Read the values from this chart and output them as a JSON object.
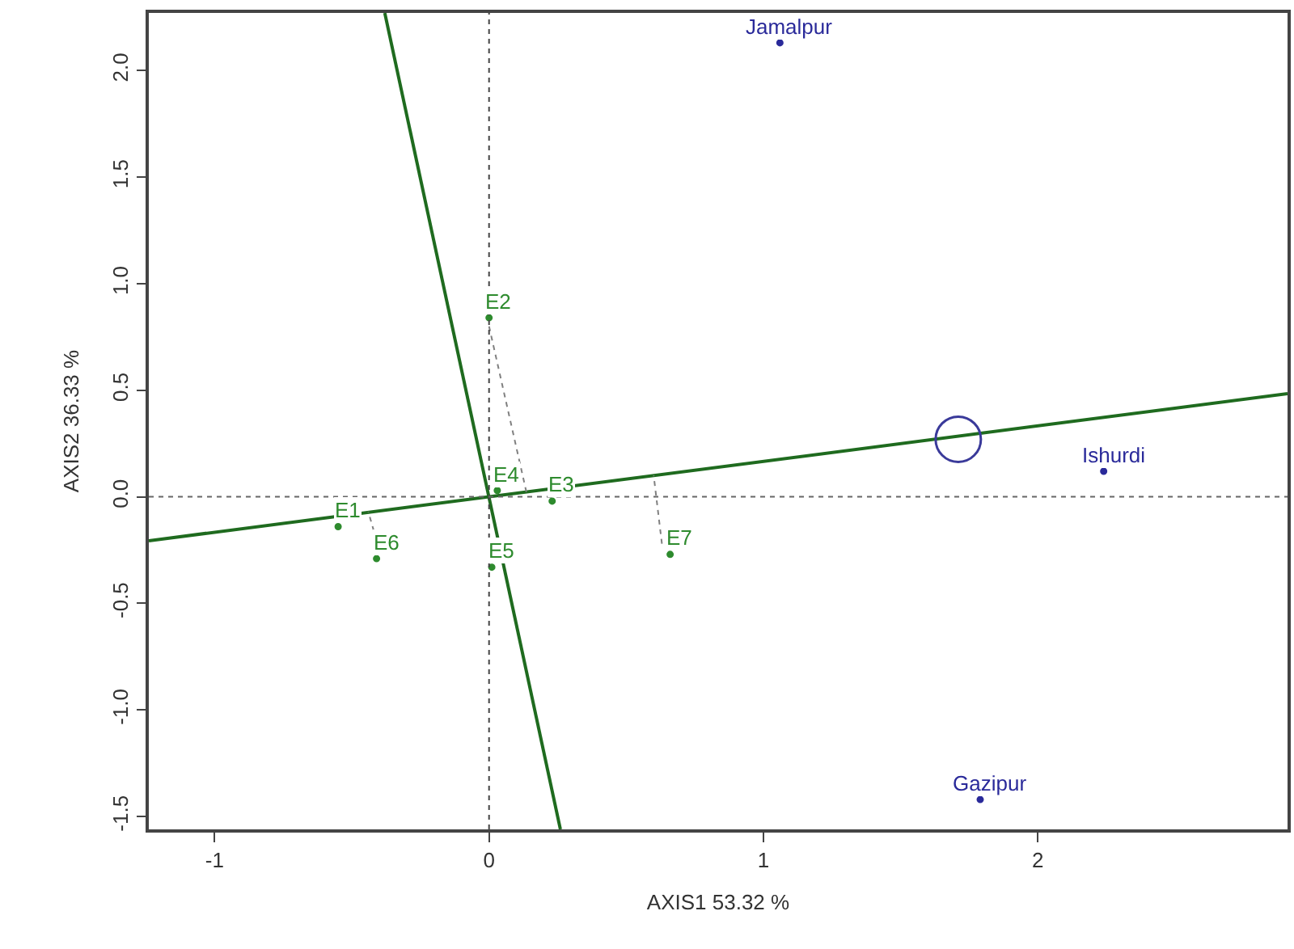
{
  "chart_data": {
    "type": "scatter",
    "xlabel": "AXIS1 53.32 %",
    "ylabel": "AXIS2 36.33 %",
    "xlim": [
      -1.24,
      2.91
    ],
    "ylim": [
      -1.56,
      2.27
    ],
    "xticks": [
      -1,
      0,
      1,
      2
    ],
    "yticks": [
      {
        "value": -1.5,
        "label": "-1.5"
      },
      {
        "value": -1.0,
        "label": "-1.0"
      },
      {
        "value": -0.5,
        "label": "-0.5"
      },
      {
        "value": 0.0,
        "label": "0.0"
      },
      {
        "value": 0.5,
        "label": "0.5"
      },
      {
        "value": 1.0,
        "label": "1.0"
      },
      {
        "value": 1.5,
        "label": "1.5"
      },
      {
        "value": 2.0,
        "label": "2.0"
      }
    ],
    "ref_lines": [
      {
        "axis": "x",
        "value": 0,
        "color": "#444444",
        "line_style": "dotted"
      },
      {
        "axis": "y",
        "value": 0,
        "color": "#666666",
        "line_style": "dotted"
      }
    ],
    "series": [
      {
        "type": "line",
        "color": "#1f6b1f",
        "line_style": "solid",
        "x": [
          -1.24,
          2.91
        ],
        "values": [
          -0.206,
          0.484
        ]
      },
      {
        "type": "line",
        "color": "#1f6b1f",
        "line_style": "solid",
        "x": [
          -0.38,
          0.26
        ],
        "values": [
          2.27,
          -1.56
        ]
      },
      {
        "type": "line",
        "color": "#808080",
        "line_style": "dotted",
        "x": [
          0.0,
          0.136
        ],
        "values": [
          0.8,
          0.023
        ]
      },
      {
        "type": "line",
        "color": "#808080",
        "line_style": "dotted",
        "x": [
          0.63,
          0.6
        ],
        "values": [
          -0.22,
          0.1
        ]
      },
      {
        "type": "line",
        "color": "#808080",
        "line_style": "dotted",
        "x": [
          -0.42,
          -0.44
        ],
        "values": [
          -0.16,
          -0.07
        ]
      },
      {
        "marker": "circle",
        "color": "#2e8b2e",
        "x": [
          -0.55,
          0.0,
          0.23,
          0.03,
          0.01,
          -0.41,
          0.66
        ],
        "values": [
          -0.14,
          0.84,
          -0.02,
          0.03,
          -0.33,
          -0.29,
          -0.27
        ],
        "value_labels": [
          "E1",
          "E2",
          "E3",
          "E4",
          "E5",
          "E6",
          "E7"
        ]
      },
      {
        "marker": "circle",
        "color": "#2a2a9a",
        "x": [
          1.06,
          2.24,
          1.79
        ],
        "values": [
          2.13,
          0.12,
          -1.42
        ],
        "value_labels": [
          "Jamalpur",
          "Ishurdi",
          "Gazipur"
        ]
      },
      {
        "marker": "circle",
        "color": "#3a3a9a",
        "x": [
          1.71
        ],
        "values": [
          0.27
        ]
      }
    ]
  }
}
